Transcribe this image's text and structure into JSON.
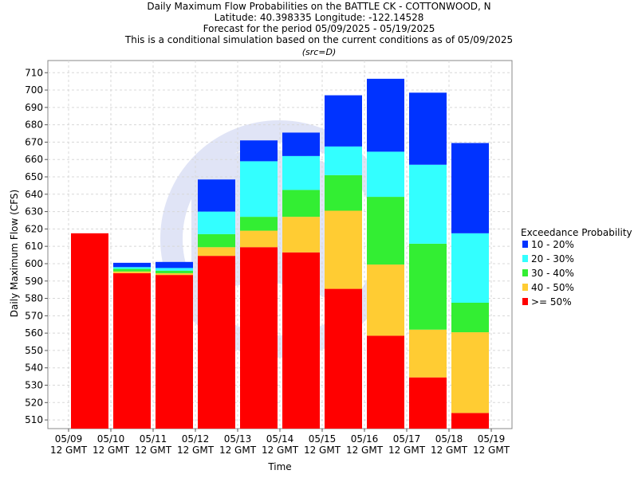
{
  "header": {
    "title_lines": [
      "Daily Maximum Flow Probabilities on the BATTLE CK - COTTONWOOD, N",
      "Latitude: 40.398335 Longitude: -122.14528",
      "Forecast for the period 05/09/2025 - 05/19/2025",
      "This is a conditional simulation based on the current conditions as of 05/09/2025"
    ],
    "source": "(src=D)"
  },
  "legend": {
    "title": "Exceedance Probability",
    "entries": [
      {
        "label": "10 - 20%",
        "color": "#0033ff"
      },
      {
        "label": "20 - 30%",
        "color": "#33ffff"
      },
      {
        "label": "30 - 40%",
        "color": "#33ee33"
      },
      {
        "label": "40 - 50%",
        "color": "#ffcc33"
      },
      {
        "label": ">= 50%",
        "color": "#ff0000"
      }
    ]
  },
  "chart_data": {
    "type": "bar",
    "stacked": true,
    "xlabel": "Time",
    "ylabel": "Daily Maximum Flow (CFS)",
    "ylim": [
      505,
      717
    ],
    "yticks": [
      510,
      520,
      530,
      540,
      550,
      560,
      570,
      580,
      590,
      600,
      610,
      620,
      630,
      640,
      650,
      660,
      670,
      680,
      690,
      700,
      710
    ],
    "grid": true,
    "legend_position": "right",
    "xticks": [
      {
        "line1": "05/09",
        "line2": "12 GMT"
      },
      {
        "line1": "05/10",
        "line2": "12 GMT"
      },
      {
        "line1": "05/11",
        "line2": "12 GMT"
      },
      {
        "line1": "05/12",
        "line2": "12 GMT"
      },
      {
        "line1": "05/13",
        "line2": "12 GMT"
      },
      {
        "line1": "05/14",
        "line2": "12 GMT"
      },
      {
        "line1": "05/15",
        "line2": "12 GMT"
      },
      {
        "line1": "05/16",
        "line2": "12 GMT"
      },
      {
        "line1": "05/17",
        "line2": "12 GMT"
      },
      {
        "line1": "05/18",
        "line2": "12 GMT"
      },
      {
        "line1": "05/19",
        "line2": "12 GMT"
      }
    ],
    "bands": [
      {
        "name": ">= 50%",
        "color": "#ff0000"
      },
      {
        "name": "40 - 50%",
        "color": "#ffcc33"
      },
      {
        "name": "30 - 40%",
        "color": "#33ee33"
      },
      {
        "name": "20 - 30%",
        "color": "#33ffff"
      },
      {
        "name": "10 - 20%",
        "color": "#0033ff"
      }
    ],
    "bars": [
      {
        "start": "05/09 12 GMT",
        "tops": [
          617.5,
          617.5,
          617.5,
          617.5,
          617.5
        ]
      },
      {
        "start": "05/10 12 GMT",
        "tops": [
          594.5,
          595.5,
          597.0,
          598.0,
          600.5
        ]
      },
      {
        "start": "05/11 12 GMT",
        "tops": [
          593.5,
          594.5,
          596.0,
          597.5,
          601.0
        ]
      },
      {
        "start": "05/12 12 GMT",
        "tops": [
          604.5,
          609.5,
          617.0,
          630.0,
          648.5
        ]
      },
      {
        "start": "05/13 12 GMT",
        "tops": [
          609.5,
          619.0,
          627.0,
          659.0,
          671.0
        ]
      },
      {
        "start": "05/14 12 GMT",
        "tops": [
          606.5,
          627.0,
          642.5,
          662.0,
          675.5
        ]
      },
      {
        "start": "05/15 12 GMT",
        "tops": [
          585.5,
          630.5,
          651.0,
          667.5,
          697.0
        ]
      },
      {
        "start": "05/16 12 GMT",
        "tops": [
          558.5,
          599.5,
          638.5,
          664.5,
          706.5
        ]
      },
      {
        "start": "05/17 12 GMT",
        "tops": [
          534.5,
          562.0,
          611.5,
          657.0,
          698.5
        ]
      },
      {
        "start": "05/18 12 GMT",
        "tops": [
          514.0,
          560.5,
          577.5,
          617.5,
          669.5
        ]
      }
    ]
  }
}
